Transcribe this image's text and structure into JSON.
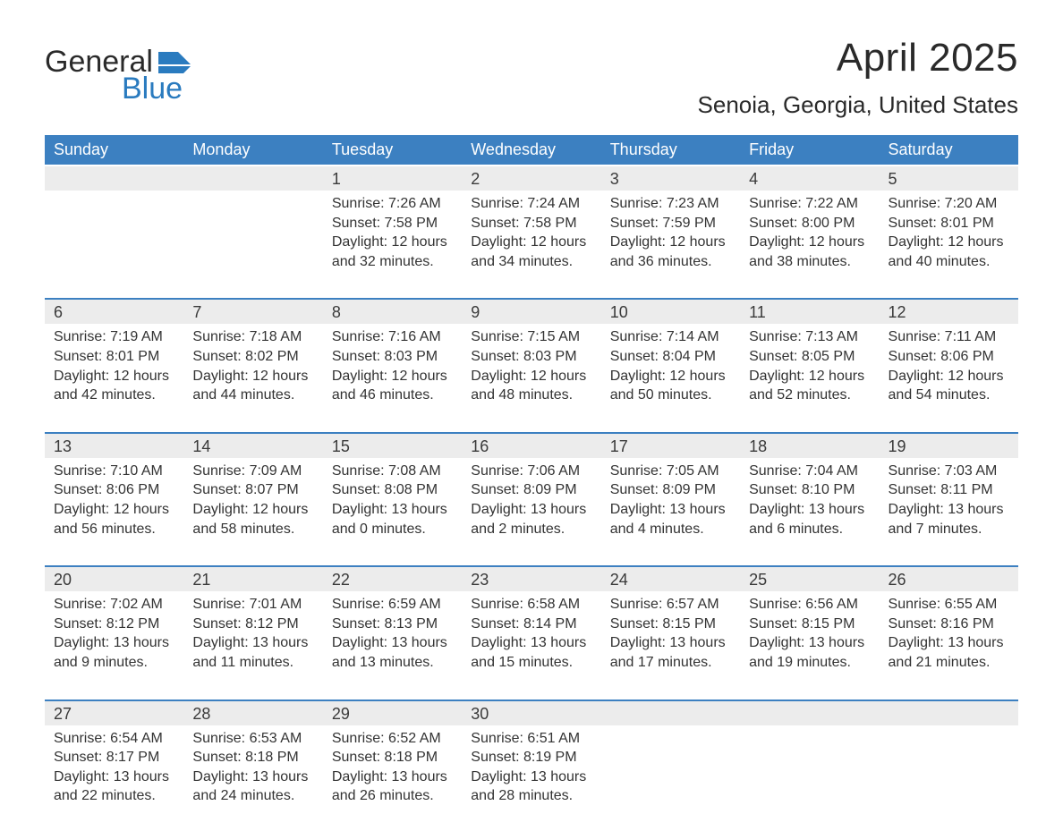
{
  "logo": {
    "text1": "General",
    "text2": "Blue",
    "glyph_color": "#2a7bbf"
  },
  "title": "April 2025",
  "subtitle": "Senoia, Georgia, United States",
  "colors": {
    "header_bg": "#3c80c1",
    "header_text": "#ffffff",
    "daynum_bg": "#ececec",
    "row_border": "#3c80c1",
    "body_text": "#333333",
    "background": "#ffffff"
  },
  "weekdays": [
    "Sunday",
    "Monday",
    "Tuesday",
    "Wednesday",
    "Thursday",
    "Friday",
    "Saturday"
  ],
  "weeks": [
    [
      null,
      null,
      {
        "d": "1",
        "sunrise": "7:26 AM",
        "sunset": "7:58 PM",
        "daylight": "12 hours and 32 minutes."
      },
      {
        "d": "2",
        "sunrise": "7:24 AM",
        "sunset": "7:58 PM",
        "daylight": "12 hours and 34 minutes."
      },
      {
        "d": "3",
        "sunrise": "7:23 AM",
        "sunset": "7:59 PM",
        "daylight": "12 hours and 36 minutes."
      },
      {
        "d": "4",
        "sunrise": "7:22 AM",
        "sunset": "8:00 PM",
        "daylight": "12 hours and 38 minutes."
      },
      {
        "d": "5",
        "sunrise": "7:20 AM",
        "sunset": "8:01 PM",
        "daylight": "12 hours and 40 minutes."
      }
    ],
    [
      {
        "d": "6",
        "sunrise": "7:19 AM",
        "sunset": "8:01 PM",
        "daylight": "12 hours and 42 minutes."
      },
      {
        "d": "7",
        "sunrise": "7:18 AM",
        "sunset": "8:02 PM",
        "daylight": "12 hours and 44 minutes."
      },
      {
        "d": "8",
        "sunrise": "7:16 AM",
        "sunset": "8:03 PM",
        "daylight": "12 hours and 46 minutes."
      },
      {
        "d": "9",
        "sunrise": "7:15 AM",
        "sunset": "8:03 PM",
        "daylight": "12 hours and 48 minutes."
      },
      {
        "d": "10",
        "sunrise": "7:14 AM",
        "sunset": "8:04 PM",
        "daylight": "12 hours and 50 minutes."
      },
      {
        "d": "11",
        "sunrise": "7:13 AM",
        "sunset": "8:05 PM",
        "daylight": "12 hours and 52 minutes."
      },
      {
        "d": "12",
        "sunrise": "7:11 AM",
        "sunset": "8:06 PM",
        "daylight": "12 hours and 54 minutes."
      }
    ],
    [
      {
        "d": "13",
        "sunrise": "7:10 AM",
        "sunset": "8:06 PM",
        "daylight": "12 hours and 56 minutes."
      },
      {
        "d": "14",
        "sunrise": "7:09 AM",
        "sunset": "8:07 PM",
        "daylight": "12 hours and 58 minutes."
      },
      {
        "d": "15",
        "sunrise": "7:08 AM",
        "sunset": "8:08 PM",
        "daylight": "13 hours and 0 minutes."
      },
      {
        "d": "16",
        "sunrise": "7:06 AM",
        "sunset": "8:09 PM",
        "daylight": "13 hours and 2 minutes."
      },
      {
        "d": "17",
        "sunrise": "7:05 AM",
        "sunset": "8:09 PM",
        "daylight": "13 hours and 4 minutes."
      },
      {
        "d": "18",
        "sunrise": "7:04 AM",
        "sunset": "8:10 PM",
        "daylight": "13 hours and 6 minutes."
      },
      {
        "d": "19",
        "sunrise": "7:03 AM",
        "sunset": "8:11 PM",
        "daylight": "13 hours and 7 minutes."
      }
    ],
    [
      {
        "d": "20",
        "sunrise": "7:02 AM",
        "sunset": "8:12 PM",
        "daylight": "13 hours and 9 minutes."
      },
      {
        "d": "21",
        "sunrise": "7:01 AM",
        "sunset": "8:12 PM",
        "daylight": "13 hours and 11 minutes."
      },
      {
        "d": "22",
        "sunrise": "6:59 AM",
        "sunset": "8:13 PM",
        "daylight": "13 hours and 13 minutes."
      },
      {
        "d": "23",
        "sunrise": "6:58 AM",
        "sunset": "8:14 PM",
        "daylight": "13 hours and 15 minutes."
      },
      {
        "d": "24",
        "sunrise": "6:57 AM",
        "sunset": "8:15 PM",
        "daylight": "13 hours and 17 minutes."
      },
      {
        "d": "25",
        "sunrise": "6:56 AM",
        "sunset": "8:15 PM",
        "daylight": "13 hours and 19 minutes."
      },
      {
        "d": "26",
        "sunrise": "6:55 AM",
        "sunset": "8:16 PM",
        "daylight": "13 hours and 21 minutes."
      }
    ],
    [
      {
        "d": "27",
        "sunrise": "6:54 AM",
        "sunset": "8:17 PM",
        "daylight": "13 hours and 22 minutes."
      },
      {
        "d": "28",
        "sunrise": "6:53 AM",
        "sunset": "8:18 PM",
        "daylight": "13 hours and 24 minutes."
      },
      {
        "d": "29",
        "sunrise": "6:52 AM",
        "sunset": "8:18 PM",
        "daylight": "13 hours and 26 minutes."
      },
      {
        "d": "30",
        "sunrise": "6:51 AM",
        "sunset": "8:19 PM",
        "daylight": "13 hours and 28 minutes."
      },
      null,
      null,
      null
    ]
  ],
  "labels": {
    "sunrise_prefix": "Sunrise: ",
    "sunset_prefix": "Sunset: ",
    "daylight_prefix": "Daylight: "
  }
}
